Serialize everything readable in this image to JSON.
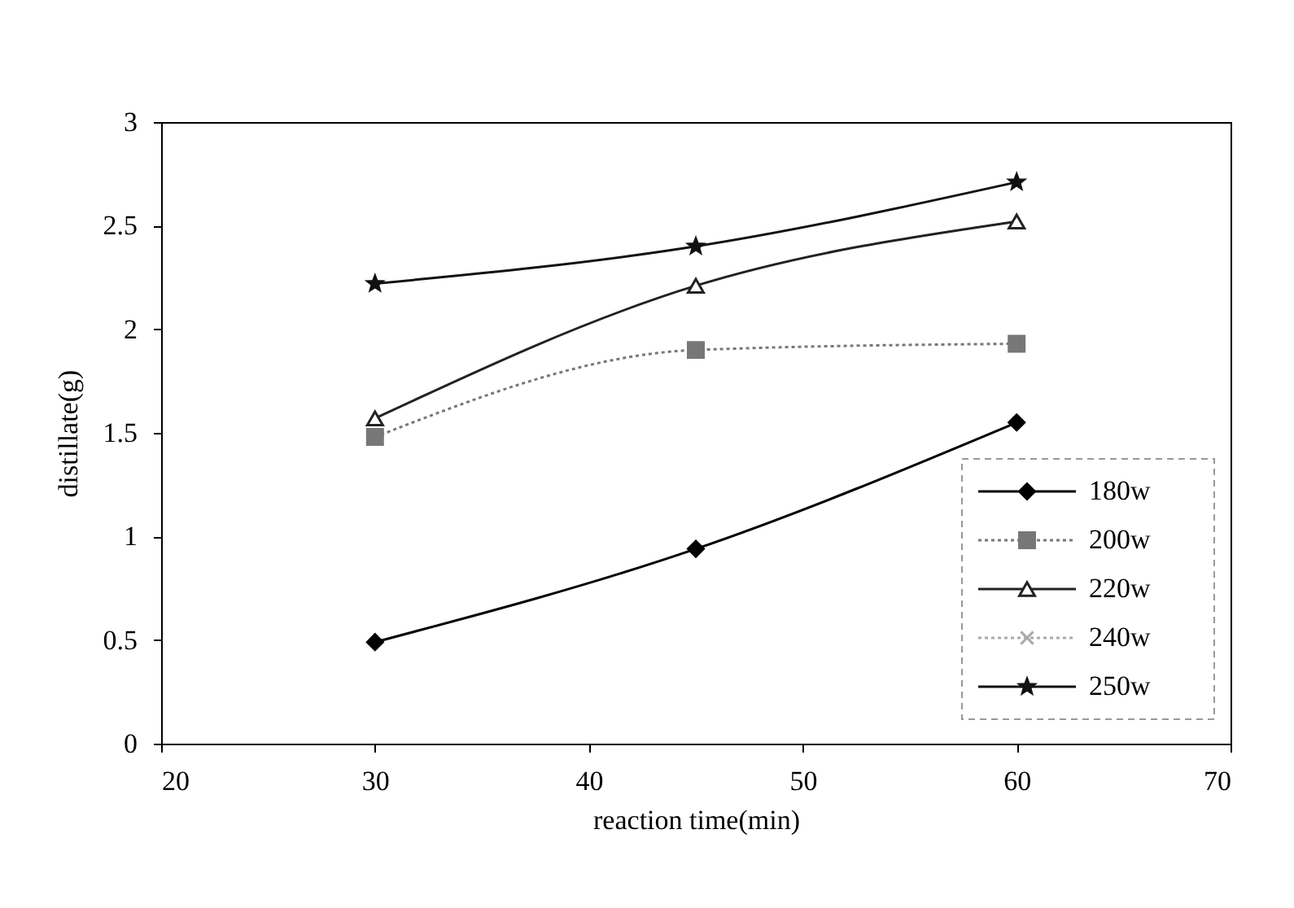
{
  "chart_data": {
    "type": "line",
    "xlabel": "reaction time(min)",
    "ylabel": "distillate(g)",
    "x": [
      30,
      45,
      60
    ],
    "series": [
      {
        "name": "180w",
        "color": "#000000",
        "marker": "diamond",
        "line_style": "solid",
        "values": [
          0.49,
          0.94,
          1.55
        ]
      },
      {
        "name": "200w",
        "color": "#777777",
        "marker": "square",
        "line_style": "dotted",
        "values": [
          1.48,
          1.9,
          1.93
        ]
      },
      {
        "name": "220w",
        "color": "#222222",
        "marker": "triangle",
        "line_style": "solid",
        "values": [
          1.57,
          2.21,
          2.52
        ]
      },
      {
        "name": "240w",
        "color": "#aaaaaa",
        "marker": "cross",
        "line_style": "dotted",
        "values": [
          null,
          null,
          null
        ]
      },
      {
        "name": "250w",
        "color": "#111111",
        "marker": "star",
        "line_style": "solid",
        "values": [
          2.22,
          2.4,
          2.71
        ]
      }
    ],
    "xlim": [
      20,
      70
    ],
    "xticks": [
      20,
      30,
      40,
      50,
      60,
      70
    ],
    "ylim": [
      0,
      3
    ],
    "yticks": [
      0,
      0.5,
      1,
      1.5,
      2,
      2.5,
      3
    ],
    "grid": false,
    "legend": "bottom right"
  }
}
